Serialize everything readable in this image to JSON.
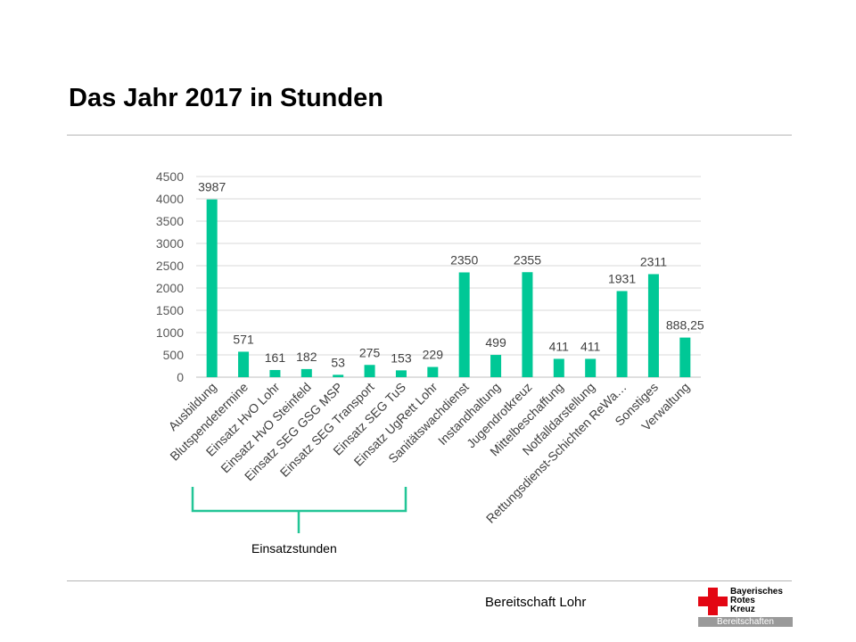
{
  "slide": {
    "title": "Das Jahr 2017 in Stunden",
    "annotation": "Einsatzstunden",
    "footer": "Bereitschaft Lohr"
  },
  "logo": {
    "line1": "Bayerisches",
    "line2": "Rotes",
    "line3": "Kreuz",
    "division": "Bereitschaften",
    "cross_color": "#e30613"
  },
  "chart_data": {
    "type": "bar",
    "title": "",
    "xlabel": "",
    "ylabel": "",
    "ylim": [
      0,
      4500
    ],
    "yticks": [
      "0",
      "500",
      "1000",
      "1500",
      "2000",
      "2500",
      "3000",
      "3500",
      "4000",
      "4500"
    ],
    "grid": true,
    "bar_color": "#00c896",
    "categories": [
      "Ausbildung",
      "Blutspendetermine",
      "Einsatz HvO Lohr",
      "Einsatz HvO Steinfeld",
      "Einsatz SEG GSG MSP",
      "Einsatz SEG Transport",
      "Einsatz SEG TuS",
      "Einsatz UgRett Lohr",
      "Sanitätswachdienst",
      "Instandhaltung",
      "Jugendrotkreuz",
      "Mittelbeschaffung",
      "Notfalldarstellung",
      "Rettungsdienst-Schichten ReWa…",
      "Sonstiges",
      "Verwaltung"
    ],
    "values": [
      3987,
      571,
      161,
      182,
      53,
      275,
      153,
      229,
      2350,
      499,
      2355,
      411,
      411,
      1931,
      2311,
      888.25
    ],
    "data_labels": [
      "3987",
      "571",
      "161",
      "182",
      "53",
      "275",
      "153",
      "229",
      "2350",
      "499",
      "2355",
      "411",
      "411",
      "1931",
      "2311",
      "888,25"
    ]
  }
}
